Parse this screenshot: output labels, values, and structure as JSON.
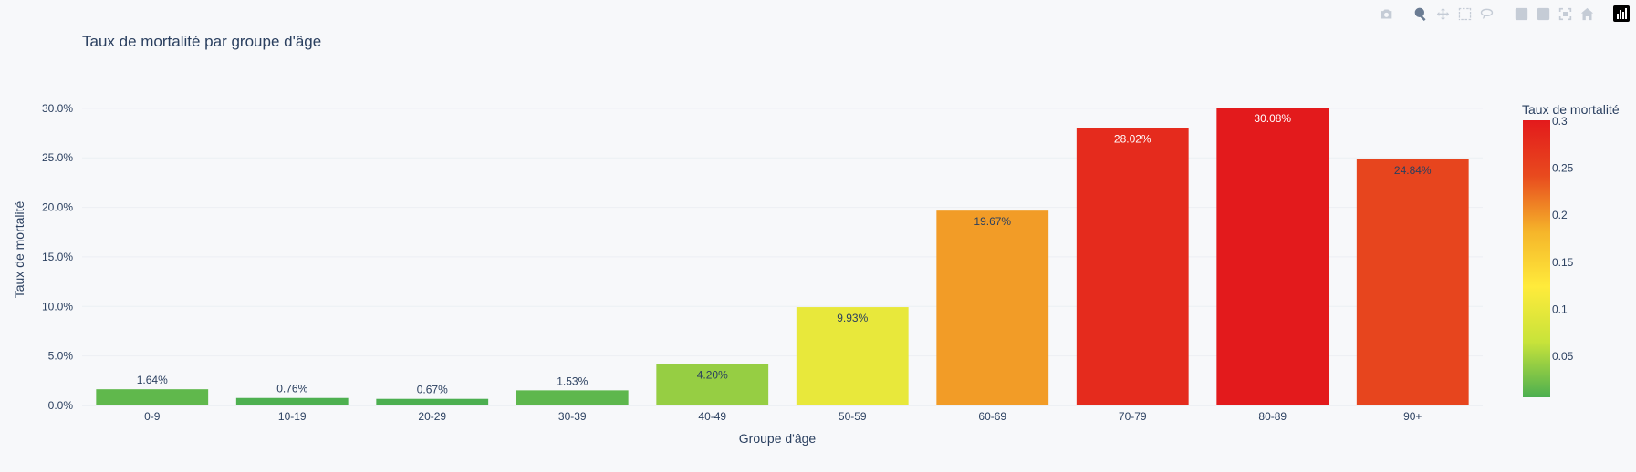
{
  "modebar": {
    "buttons": [
      {
        "name": "camera-icon",
        "group": 0,
        "active": false
      },
      {
        "name": "zoom-icon",
        "group": 1,
        "active": true
      },
      {
        "name": "pan-icon",
        "group": 1,
        "active": false
      },
      {
        "name": "box-select-icon",
        "group": 1,
        "active": false
      },
      {
        "name": "lasso-select-icon",
        "group": 1,
        "active": false
      },
      {
        "name": "zoom-in-icon",
        "group": 2,
        "active": false
      },
      {
        "name": "zoom-out-icon",
        "group": 2,
        "active": false
      },
      {
        "name": "autoscale-icon",
        "group": 2,
        "active": false
      },
      {
        "name": "reset-axes-icon",
        "group": 2,
        "active": false
      },
      {
        "name": "plotly-logo-icon",
        "group": 3,
        "active": false
      }
    ]
  },
  "chart_data": {
    "type": "bar",
    "title": "Taux de mortalité par groupe d'âge",
    "xlabel": "Groupe d'âge",
    "ylabel": "Taux de mortalité",
    "categories": [
      "0-9",
      "10-19",
      "20-29",
      "30-39",
      "40-49",
      "50-59",
      "60-69",
      "70-79",
      "80-89",
      "90+"
    ],
    "values": [
      0.0164,
      0.0076,
      0.0067,
      0.0153,
      0.042,
      0.0993,
      0.1967,
      0.2802,
      0.3008,
      0.2484
    ],
    "data_labels": [
      "1.64%",
      "0.76%",
      "0.67%",
      "1.53%",
      "4.20%",
      "9.93%",
      "19.67%",
      "28.02%",
      "30.08%",
      "24.84%"
    ],
    "ylim": [
      0,
      0.3008
    ],
    "yticks": [
      0,
      0.05,
      0.1,
      0.15,
      0.2,
      0.25,
      0.3
    ],
    "ytick_labels": [
      "0.0%",
      "5.0%",
      "10.0%",
      "15.0%",
      "20.0%",
      "25.0%",
      "30.0%"
    ],
    "grid": true,
    "colorscale": [
      "#4caf50",
      "#c8e33a",
      "#ffeb3b",
      "#f5b42a",
      "#e84a1e",
      "#e31a1c"
    ],
    "colorbar": {
      "title": "Taux de mortalité",
      "range": [
        0.0067,
        0.3008
      ],
      "tick_values": [
        0.05,
        0.1,
        0.15,
        0.2,
        0.25,
        0.3
      ],
      "tick_labels": [
        "0.05",
        "0.1",
        "0.15",
        "0.2",
        "0.25",
        "0.3"
      ],
      "placement": "right"
    }
  }
}
